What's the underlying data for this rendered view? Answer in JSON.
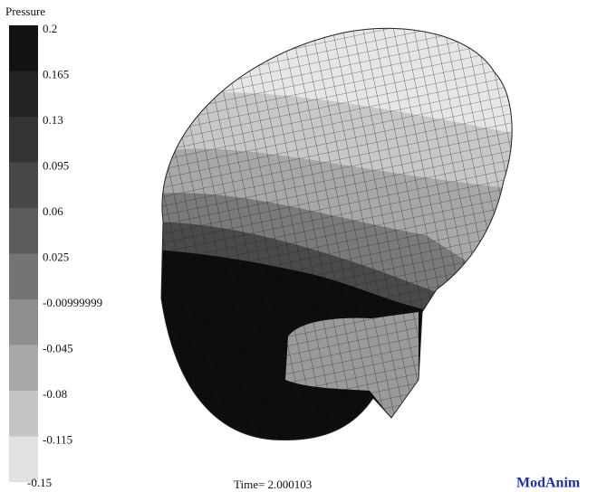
{
  "legend": {
    "title": "Pressure",
    "ticks": [
      "0.2",
      "0.165",
      "0.13",
      "0.095",
      "0.06",
      "0.025",
      "-0.00999999",
      "-0.045",
      "-0.08",
      "-0.115",
      "-0.15"
    ]
  },
  "time_label": "Time= 2.000103",
  "brand": "ModAnim"
}
